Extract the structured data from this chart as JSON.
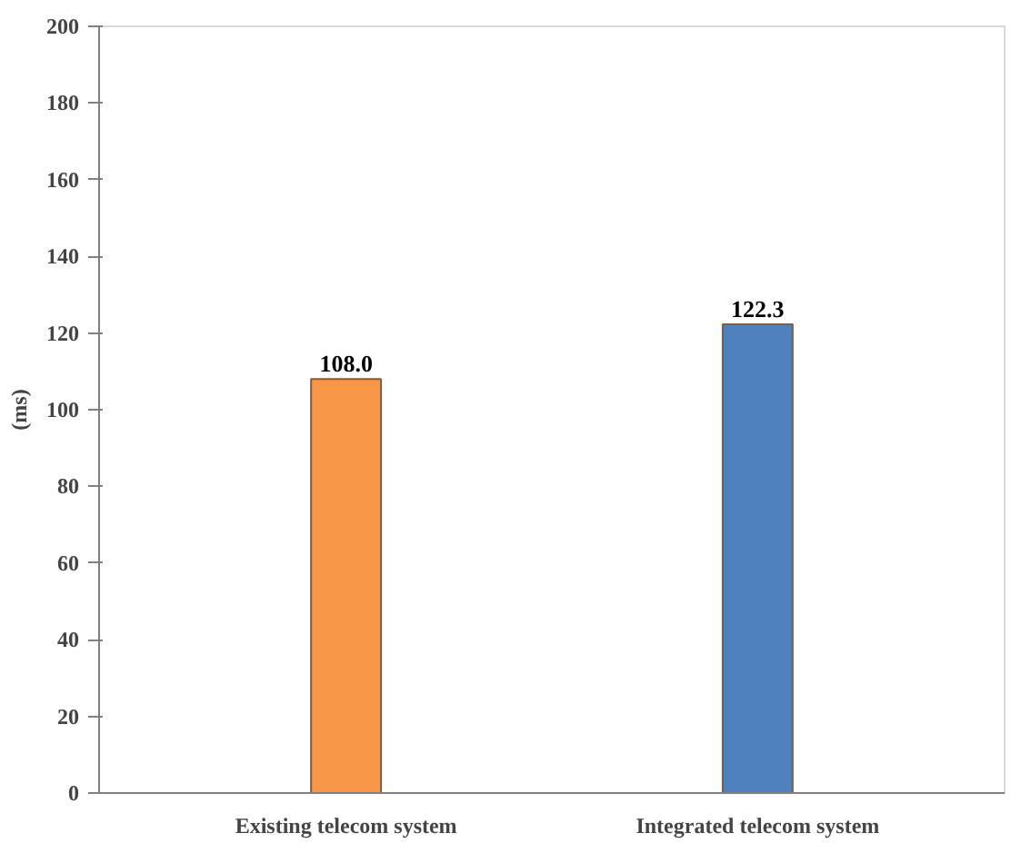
{
  "chart_data": {
    "type": "bar",
    "ylabel": "(ms)",
    "categories": [
      "Existing telecom system",
      "Integrated telecom system"
    ],
    "values": [
      108.0,
      122.3
    ],
    "value_labels": [
      "108.0",
      "122.3"
    ],
    "colors": [
      "#f79646",
      "#4f81bd"
    ],
    "ylim": [
      0,
      200
    ],
    "yticks": [
      0,
      20,
      40,
      60,
      80,
      100,
      120,
      140,
      160,
      180,
      200
    ],
    "grid": false
  }
}
